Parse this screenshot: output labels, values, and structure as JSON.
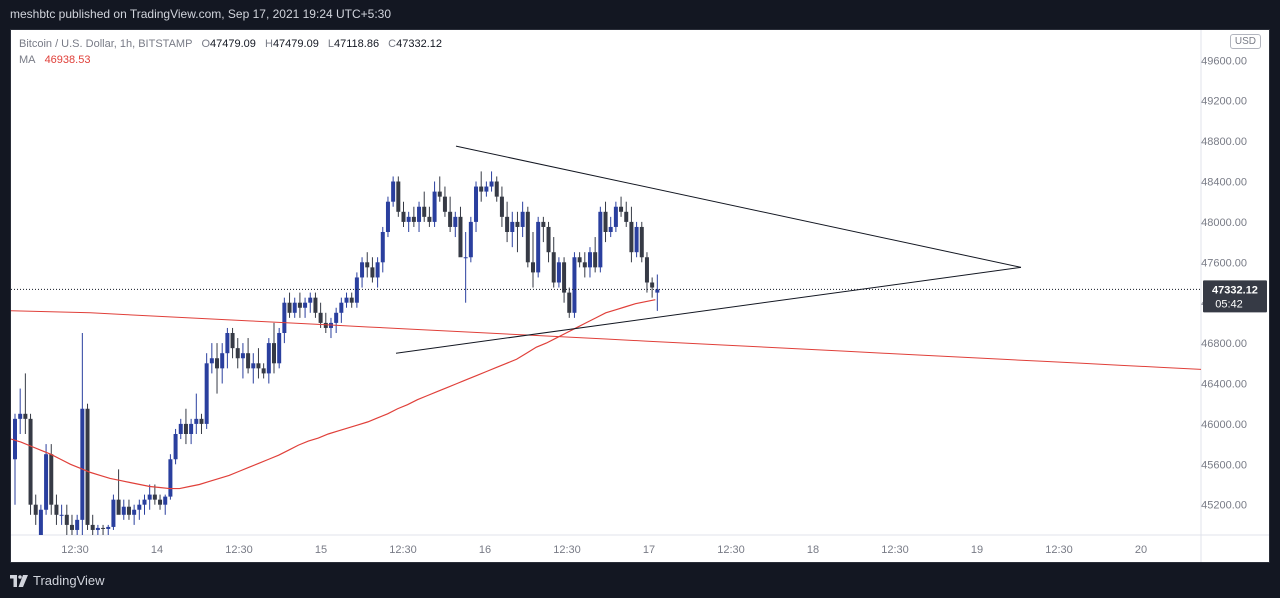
{
  "header": {
    "published": "meshbtc published on TradingView.com, Sep 17, 2021 19:24 UTC+5:30"
  },
  "legend": {
    "symbol": "Bitcoin / U.S. Dollar, 1h, BITSTAMP",
    "o_label": "O",
    "o_value": "47479.09",
    "h_label": "H",
    "h_value": "47479.09",
    "l_label": "L",
    "l_value": "47118.86",
    "c_label": "C",
    "c_value": "47332.12",
    "ma_label": "MA",
    "ma_value": "46938.53"
  },
  "currency_badge": "USD",
  "price_tag": {
    "price": "47332.12",
    "countdown": "05:42"
  },
  "footer": {
    "brand": "TradingView"
  },
  "colors": {
    "up": "#2a3f9e",
    "down": "#363a45",
    "ma": "#e0403a",
    "background": "#ffffff"
  },
  "chart_data": {
    "type": "candlestick",
    "symbol": "Bitcoin / U.S. Dollar",
    "timeframe": "1h",
    "exchange": "BITSTAMP",
    "currency": "USD",
    "y_ticks": [
      45200,
      45600,
      46000,
      46400,
      46800,
      47200,
      47600,
      48000,
      48400,
      48800,
      49200,
      49600
    ],
    "ylim": [
      44900,
      49900
    ],
    "x_ticks": [
      "12:30",
      "14",
      "12:30",
      "15",
      "12:30",
      "16",
      "12:30",
      "17",
      "12:30",
      "18",
      "12:30",
      "19",
      "12:30",
      "20"
    ],
    "last_price": 47332.12,
    "ma_value": 46938.53,
    "candles": [
      [
        45650,
        46100,
        45200,
        46050
      ],
      [
        46050,
        46350,
        45900,
        46100
      ],
      [
        46100,
        46500,
        45900,
        46050
      ],
      [
        46050,
        46100,
        45100,
        45200
      ],
      [
        45200,
        45300,
        45000,
        45100
      ],
      [
        44900,
        45200,
        44900,
        45150
      ],
      [
        45150,
        45800,
        45100,
        45700
      ],
      [
        45700,
        45800,
        45100,
        45200
      ],
      [
        45200,
        45300,
        45000,
        45100
      ],
      [
        45100,
        45200,
        45000,
        45100
      ],
      [
        45100,
        45200,
        44900,
        45000
      ],
      [
        45000,
        45100,
        44900,
        44950
      ],
      [
        44950,
        45100,
        44900,
        45050
      ],
      [
        45050,
        46900,
        44900,
        46150
      ],
      [
        46150,
        46200,
        44950,
        45000
      ],
      [
        45000,
        45100,
        44900,
        44950
      ],
      [
        44950,
        45000,
        44900,
        44970
      ],
      [
        44970,
        45000,
        44900,
        44960
      ],
      [
        44960,
        45000,
        44900,
        44980
      ],
      [
        44980,
        45300,
        44950,
        45250
      ],
      [
        45250,
        45550,
        45150,
        45100
      ],
      [
        45100,
        45250,
        45050,
        45180
      ],
      [
        45180,
        45250,
        45050,
        45100
      ],
      [
        45100,
        45200,
        45000,
        45150
      ],
      [
        45150,
        45250,
        45050,
        45200
      ],
      [
        45200,
        45300,
        45100,
        45250
      ],
      [
        45250,
        45400,
        45150,
        45300
      ],
      [
        45300,
        45400,
        45200,
        45250
      ],
      [
        45250,
        45300,
        45150,
        45200
      ],
      [
        45200,
        45300,
        45100,
        45280
      ],
      [
        45280,
        45700,
        45250,
        45650
      ],
      [
        45650,
        45950,
        45600,
        45900
      ],
      [
        45900,
        46050,
        45850,
        46000
      ],
      [
        46000,
        46150,
        45800,
        45900
      ],
      [
        45900,
        46050,
        45800,
        46000
      ],
      [
        46000,
        46300,
        45900,
        46050
      ],
      [
        46050,
        46100,
        45900,
        46000
      ],
      [
        46000,
        46700,
        45950,
        46600
      ],
      [
        46600,
        46800,
        46500,
        46650
      ],
      [
        46650,
        46800,
        46300,
        46550
      ],
      [
        46550,
        46800,
        46400,
        46700
      ],
      [
        46700,
        46950,
        46550,
        46900
      ],
      [
        46900,
        46950,
        46650,
        46750
      ],
      [
        46750,
        46850,
        46550,
        46650
      ],
      [
        46650,
        46800,
        46450,
        46700
      ],
      [
        46700,
        46850,
        46500,
        46550
      ],
      [
        46550,
        46700,
        46400,
        46600
      ],
      [
        46600,
        46750,
        46450,
        46550
      ],
      [
        46550,
        46600,
        46450,
        46500
      ],
      [
        46500,
        46850,
        46400,
        46800
      ],
      [
        46800,
        47000,
        46500,
        46600
      ],
      [
        46600,
        46950,
        46550,
        46900
      ],
      [
        46900,
        47250,
        46800,
        47200
      ],
      [
        47200,
        47300,
        47050,
        47100
      ],
      [
        47100,
        47250,
        47050,
        47200
      ],
      [
        47200,
        47300,
        47050,
        47150
      ],
      [
        47150,
        47250,
        47050,
        47200
      ],
      [
        47200,
        47300,
        47100,
        47250
      ],
      [
        47250,
        47300,
        47050,
        47100
      ],
      [
        47100,
        47200,
        46950,
        47000
      ],
      [
        47000,
        47100,
        46900,
        46950
      ],
      [
        46950,
        47050,
        46850,
        47000
      ],
      [
        47000,
        47150,
        46900,
        47100
      ],
      [
        47100,
        47250,
        47000,
        47200
      ],
      [
        47200,
        47300,
        47150,
        47250
      ],
      [
        47250,
        47300,
        47150,
        47200
      ],
      [
        47200,
        47500,
        47150,
        47450
      ],
      [
        47450,
        47650,
        47350,
        47600
      ],
      [
        47600,
        47700,
        47450,
        47550
      ],
      [
        47550,
        47650,
        47400,
        47450
      ],
      [
        47450,
        47650,
        47350,
        47600
      ],
      [
        47600,
        47950,
        47500,
        47900
      ],
      [
        47900,
        48250,
        47850,
        48200
      ],
      [
        48200,
        48450,
        48150,
        48400
      ],
      [
        48400,
        48450,
        48050,
        48100
      ],
      [
        48100,
        48200,
        47950,
        48000
      ],
      [
        48000,
        48100,
        47900,
        48050
      ],
      [
        48050,
        48150,
        47950,
        48000
      ],
      [
        48000,
        48200,
        47900,
        48150
      ],
      [
        48150,
        48300,
        48000,
        48050
      ],
      [
        48050,
        48150,
        47950,
        48000
      ],
      [
        48000,
        48400,
        47950,
        48300
      ],
      [
        48300,
        48450,
        48200,
        48250
      ],
      [
        48250,
        48350,
        48050,
        48100
      ],
      [
        48100,
        48250,
        47900,
        47950
      ],
      [
        47950,
        48100,
        47850,
        48050
      ],
      [
        48050,
        48150,
        47700,
        47650
      ],
      [
        47650,
        47900,
        47200,
        47650
      ],
      [
        47650,
        48050,
        47600,
        48000
      ],
      [
        48000,
        48400,
        47900,
        48350
      ],
      [
        48350,
        48500,
        48200,
        48300
      ],
      [
        48300,
        48400,
        48250,
        48350
      ],
      [
        48350,
        48500,
        48300,
        48400
      ],
      [
        48400,
        48450,
        48200,
        48250
      ],
      [
        48250,
        48350,
        47950,
        48050
      ],
      [
        48050,
        48200,
        47800,
        47900
      ],
      [
        47900,
        48100,
        47750,
        48000
      ],
      [
        48000,
        48100,
        47700,
        47950
      ],
      [
        47950,
        48200,
        47850,
        48100
      ],
      [
        48100,
        48150,
        47550,
        47600
      ],
      [
        47600,
        47900,
        47350,
        47500
      ],
      [
        47500,
        48050,
        47450,
        48000
      ],
      [
        48000,
        48050,
        47800,
        47950
      ],
      [
        47950,
        48000,
        47600,
        47700
      ],
      [
        47700,
        47850,
        47350,
        47400
      ],
      [
        47400,
        47650,
        47350,
        47600
      ],
      [
        47600,
        47650,
        47200,
        47300
      ],
      [
        47300,
        47350,
        47050,
        47100
      ],
      [
        47100,
        47700,
        47050,
        47650
      ],
      [
        47650,
        47700,
        47550,
        47600
      ],
      [
        47600,
        47700,
        47450,
        47550
      ],
      [
        47550,
        47750,
        47450,
        47700
      ],
      [
        47700,
        47850,
        47500,
        47550
      ],
      [
        47550,
        48150,
        47500,
        48100
      ],
      [
        48100,
        48200,
        47800,
        47900
      ],
      [
        47900,
        48050,
        47850,
        47950
      ],
      [
        47950,
        48200,
        47900,
        48150
      ],
      [
        48150,
        48250,
        48050,
        48100
      ],
      [
        48100,
        48200,
        47950,
        48000
      ],
      [
        48000,
        48150,
        47600,
        47700
      ],
      [
        47700,
        48000,
        47650,
        47950
      ],
      [
        47950,
        48000,
        47600,
        47650
      ],
      [
        47650,
        47700,
        47300,
        47400
      ],
      [
        47400,
        47450,
        47250,
        47350
      ],
      [
        47300,
        47479.09,
        47118.86,
        47332.12
      ]
    ],
    "ma_fast": [
      45850,
      45820,
      45780,
      45740,
      45700,
      45650,
      45600,
      45560,
      45520,
      45490,
      45460,
      45440,
      45420,
      45400,
      45380,
      45370,
      45360,
      45360,
      45380,
      45400,
      45430,
      45460,
      45490,
      45530,
      45570,
      45610,
      45650,
      45690,
      45740,
      45790,
      45830,
      45860,
      45900,
      45930,
      45960,
      45990,
      46020,
      46060,
      46100,
      46150,
      46190,
      46240,
      46280,
      46320,
      46360,
      46400,
      46440,
      46480,
      46520,
      46560,
      46600,
      46640,
      46700,
      46760,
      46800,
      46850,
      46900,
      46950,
      47000,
      47050,
      47100,
      47130,
      47160,
      47190,
      47210,
      47230
    ],
    "ma_slow": [
      47120,
      47110,
      47100,
      47080,
      47060,
      47040,
      47020,
      47000,
      46980,
      46960,
      46940,
      46920,
      46900,
      46880,
      46860,
      46840,
      46820,
      46800,
      46780,
      46760,
      46740,
      46720,
      46700,
      46680,
      46660,
      46640,
      46620,
      46600,
      46580,
      46560,
      46540
    ],
    "trendlines": [
      {
        "from": [
          "16",
          48750
        ],
        "to": [
          "19 12:30",
          47550
        ]
      },
      {
        "from": [
          "15 12:30",
          46700
        ],
        "to": [
          "19 12:30",
          47550
        ]
      }
    ]
  }
}
